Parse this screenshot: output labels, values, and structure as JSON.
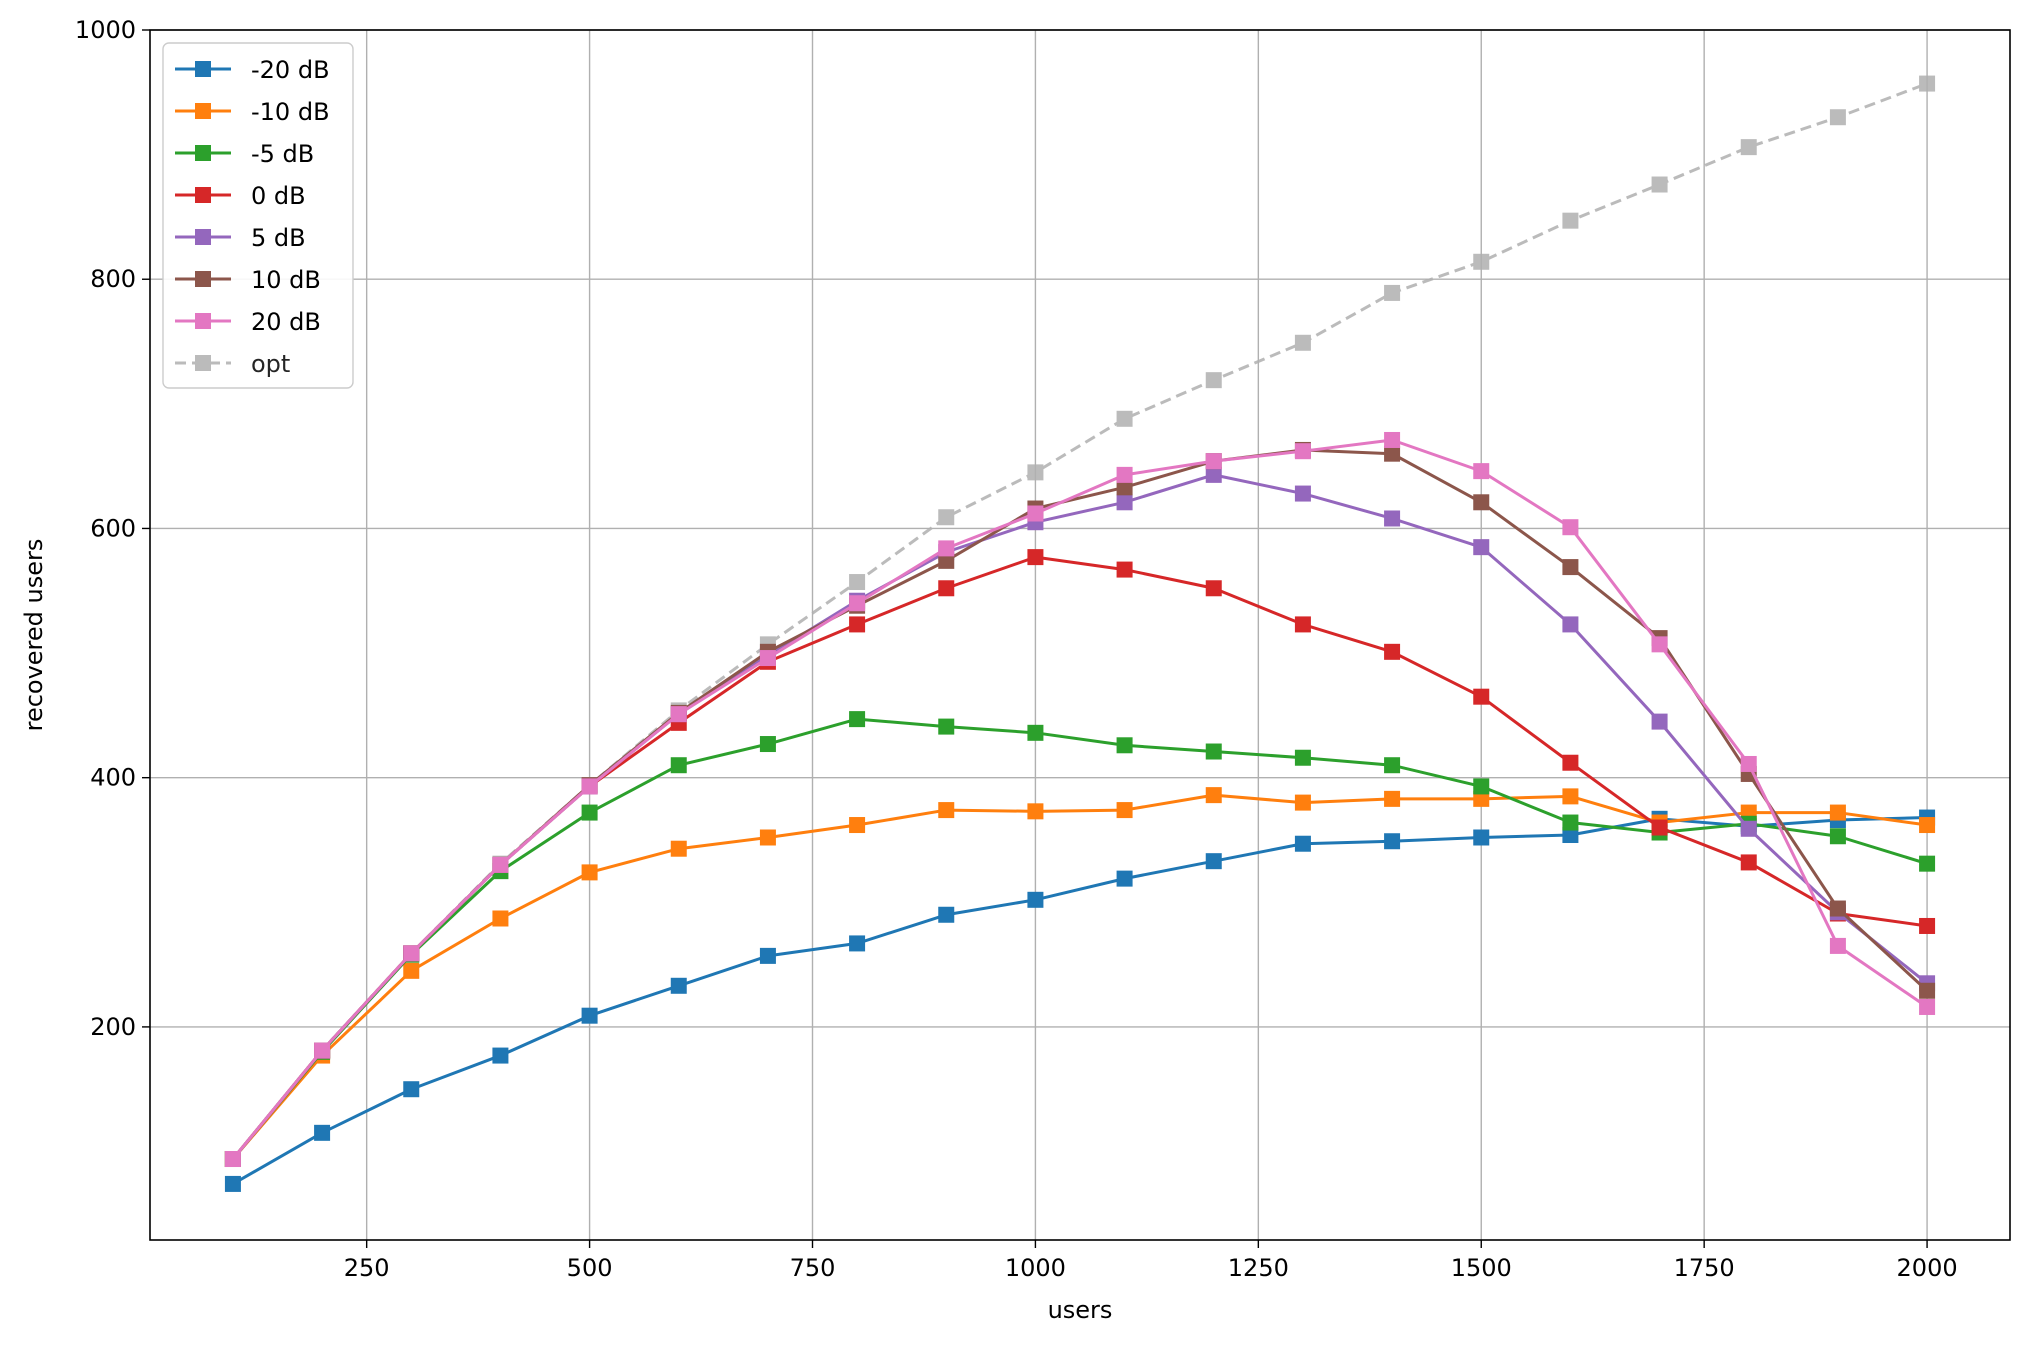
{
  "chart_data": {
    "type": "line",
    "title": "",
    "xlabel": "users",
    "ylabel": "recovered users",
    "xlim": [
      7,
      2093
    ],
    "ylim": [
      29,
      1000
    ],
    "xticks": [
      250,
      500,
      750,
      1000,
      1250,
      1500,
      1750,
      2000
    ],
    "yticks": [
      200,
      400,
      600,
      800,
      1000
    ],
    "grid": true,
    "legend_position": "upper-left",
    "x": [
      100,
      200,
      300,
      400,
      500,
      600,
      700,
      800,
      900,
      1000,
      1100,
      1200,
      1300,
      1400,
      1500,
      1600,
      1700,
      1800,
      1900,
      2000
    ],
    "series": [
      {
        "name": "-20 dB",
        "color": "#1f77b4",
        "dash": false,
        "values": [
          74,
          115,
          150,
          177,
          209,
          233,
          257,
          267,
          290,
          302,
          319,
          333,
          347,
          349,
          352,
          354,
          367,
          361,
          366,
          368
        ]
      },
      {
        "name": "-10 dB",
        "color": "#ff7f0e",
        "dash": false,
        "values": [
          94,
          177,
          245,
          287,
          324,
          343,
          352,
          362,
          374,
          373,
          374,
          386,
          380,
          383,
          383,
          385,
          364,
          372,
          372,
          362
        ]
      },
      {
        "name": "-5 dB",
        "color": "#2ca02c",
        "dash": false,
        "values": [
          94,
          180,
          258,
          325,
          372,
          410,
          427,
          447,
          441,
          436,
          426,
          421,
          416,
          410,
          393,
          364,
          356,
          363,
          353,
          331
        ]
      },
      {
        "name": "0 dB",
        "color": "#d62728",
        "dash": false,
        "values": [
          94,
          181,
          259,
          330,
          393,
          444,
          493,
          523,
          552,
          577,
          567,
          552,
          523,
          501,
          465,
          412,
          360,
          332,
          291,
          281
        ]
      },
      {
        "name": "5 dB",
        "color": "#9467bd",
        "dash": false,
        "values": [
          94,
          181,
          259,
          330,
          393,
          451,
          498,
          542,
          581,
          605,
          621,
          643,
          628,
          608,
          585,
          523,
          445,
          359,
          292,
          235
        ]
      },
      {
        "name": "10 dB",
        "color": "#8c564b",
        "dash": false,
        "values": [
          94,
          181,
          259,
          330,
          394,
          452,
          501,
          538,
          574,
          616,
          633,
          654,
          663,
          660,
          621,
          569,
          512,
          403,
          295,
          229
        ]
      },
      {
        "name": "20 dB",
        "color": "#e377c2",
        "dash": false,
        "values": [
          94,
          181,
          259,
          330,
          393,
          451,
          496,
          540,
          584,
          612,
          643,
          654,
          662,
          671,
          646,
          601,
          507,
          411,
          265,
          216
        ]
      },
      {
        "name": "opt",
        "color": "#b0b0b0",
        "dash": true,
        "values": [
          94,
          181,
          259,
          331,
          394,
          454,
          507,
          557,
          609,
          645,
          688,
          719,
          749,
          789,
          814,
          847,
          876,
          906,
          930,
          957
        ]
      }
    ]
  }
}
